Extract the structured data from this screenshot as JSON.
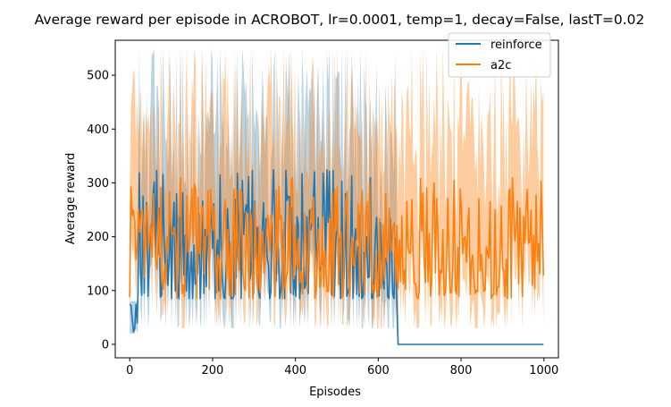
{
  "chart_data": {
    "type": "line",
    "title": "Average reward per episode in ACROBOT, lr=0.0001, temp=1, decay=False, lastT=0.02",
    "xlabel": "Episodes",
    "ylabel": "Average reward",
    "xlim": [
      -35,
      1035
    ],
    "ylim": [
      -25,
      565
    ],
    "xticks": [
      0,
      200,
      400,
      600,
      800,
      1000
    ],
    "yticks": [
      0,
      100,
      200,
      300,
      400,
      500
    ],
    "grid": false,
    "legend_position": "top-right",
    "series": [
      {
        "name": "reinforce",
        "color": "#1f77b4",
        "x_range": [
          0,
          1000
        ],
        "segments": [
          {
            "x": [
              0,
              20
            ],
            "y_mean": [
              22,
              75
            ],
            "y_band": [
              20,
              80
            ]
          },
          {
            "x": [
              20,
              645
            ],
            "y_mean_range": [
              85,
              325
            ],
            "y_typical": 170,
            "y_band": [
              30,
              550
            ]
          },
          {
            "x": [
              648,
              1000
            ],
            "y_mean": [
              0,
              0
            ],
            "y_band": [
              0,
              0
            ]
          }
        ]
      },
      {
        "name": "a2c",
        "color": "#ff7f0e",
        "x_range": [
          0,
          1000
        ],
        "segments": [
          {
            "x": [
              0,
              1000
            ],
            "y_mean_range": [
              85,
              310
            ],
            "y_typical": 185,
            "y_band": [
              30,
              550
            ]
          }
        ]
      }
    ]
  }
}
